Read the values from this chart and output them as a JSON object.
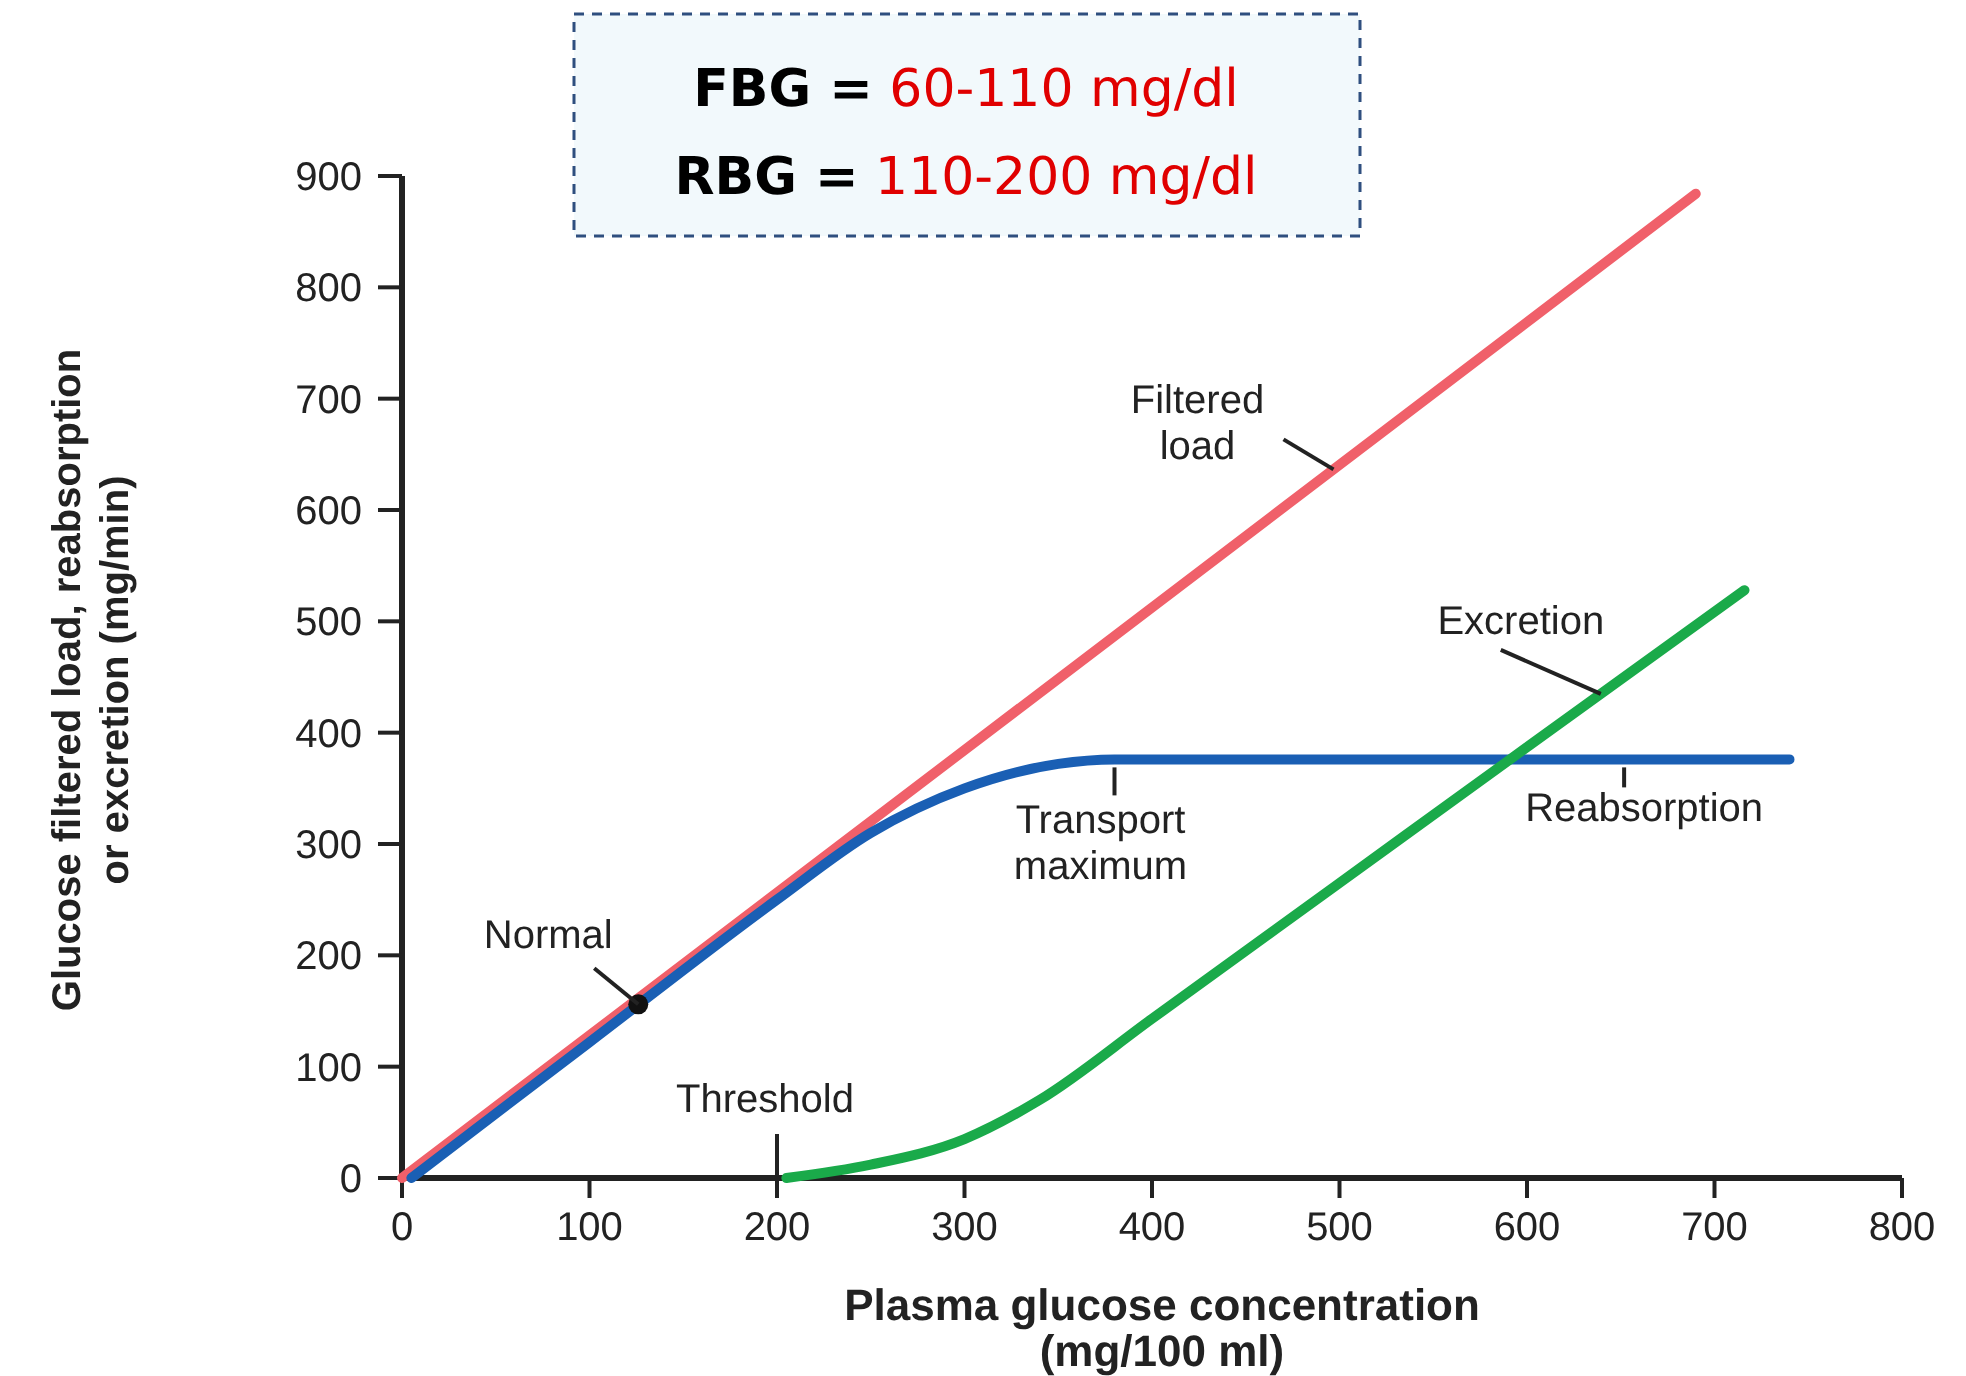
{
  "chart_data": {
    "type": "line",
    "title": "FBG = 60-110 mg/dl",
    "subtitle": "RBG = 110-200 mg/dl",
    "xlabel": "Plasma glucose concentration (mg/100 ml)",
    "ylabel": "Glucose filtered load, reabsorption or excretion (mg/min)",
    "xlim": [
      0,
      800
    ],
    "xticks": [
      0,
      100,
      200,
      300,
      400,
      500,
      600,
      700,
      800
    ],
    "ylim": [
      0,
      900
    ],
    "yticks": [
      0,
      100,
      200,
      300,
      400,
      500,
      600,
      700,
      800,
      900
    ],
    "grid": false,
    "marker": "none",
    "line_style": "solid",
    "series": [
      {
        "name": "Filtered load",
        "color": "#f0606a",
        "x": [
          0,
          690
        ],
        "values": [
          0,
          884
        ]
      },
      {
        "name": "Reabsorption",
        "color": "#1a5fb4",
        "x": [
          5,
          100,
          200,
          250,
          300,
          350,
          380,
          500,
          740
        ],
        "values": [
          0,
          122,
          250,
          310,
          350,
          372,
          376,
          376,
          376
        ]
      },
      {
        "name": "Excretion",
        "color": "#1aaa4a",
        "x": [
          205,
          250,
          300,
          340,
          400,
          500,
          600,
          716
        ],
        "values": [
          0,
          12,
          35,
          70,
          143,
          265,
          387,
          528
        ]
      },
      {
        "type": "scatter",
        "marker": "circle",
        "color": "#111111",
        "x": [
          126
        ],
        "values": [
          156
        ]
      }
    ],
    "annotations": [
      {
        "text": "Transport maximum",
        "x": 380,
        "y": 376
      },
      {
        "text": "Threshold",
        "x": 200,
        "y": 0
      },
      {
        "text": "Normal",
        "x": 126,
        "y": 156
      }
    ]
  }
}
